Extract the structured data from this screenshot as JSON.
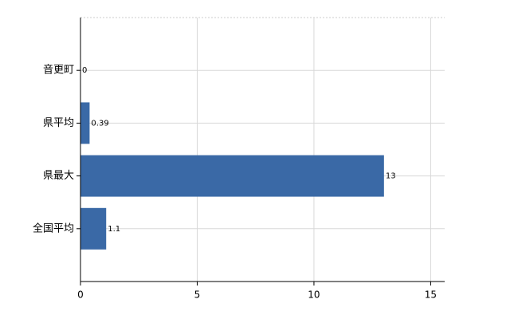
{
  "chart_data": {
    "type": "hbar",
    "categories": [
      "音更町",
      "県平均",
      "県最大",
      "全国平均"
    ],
    "values": [
      0,
      0.39,
      13,
      1.1
    ],
    "color": "#3a69a6",
    "xlim": [
      0,
      15.6
    ],
    "xticks": [
      0,
      5,
      10,
      15
    ],
    "grid": true
  }
}
